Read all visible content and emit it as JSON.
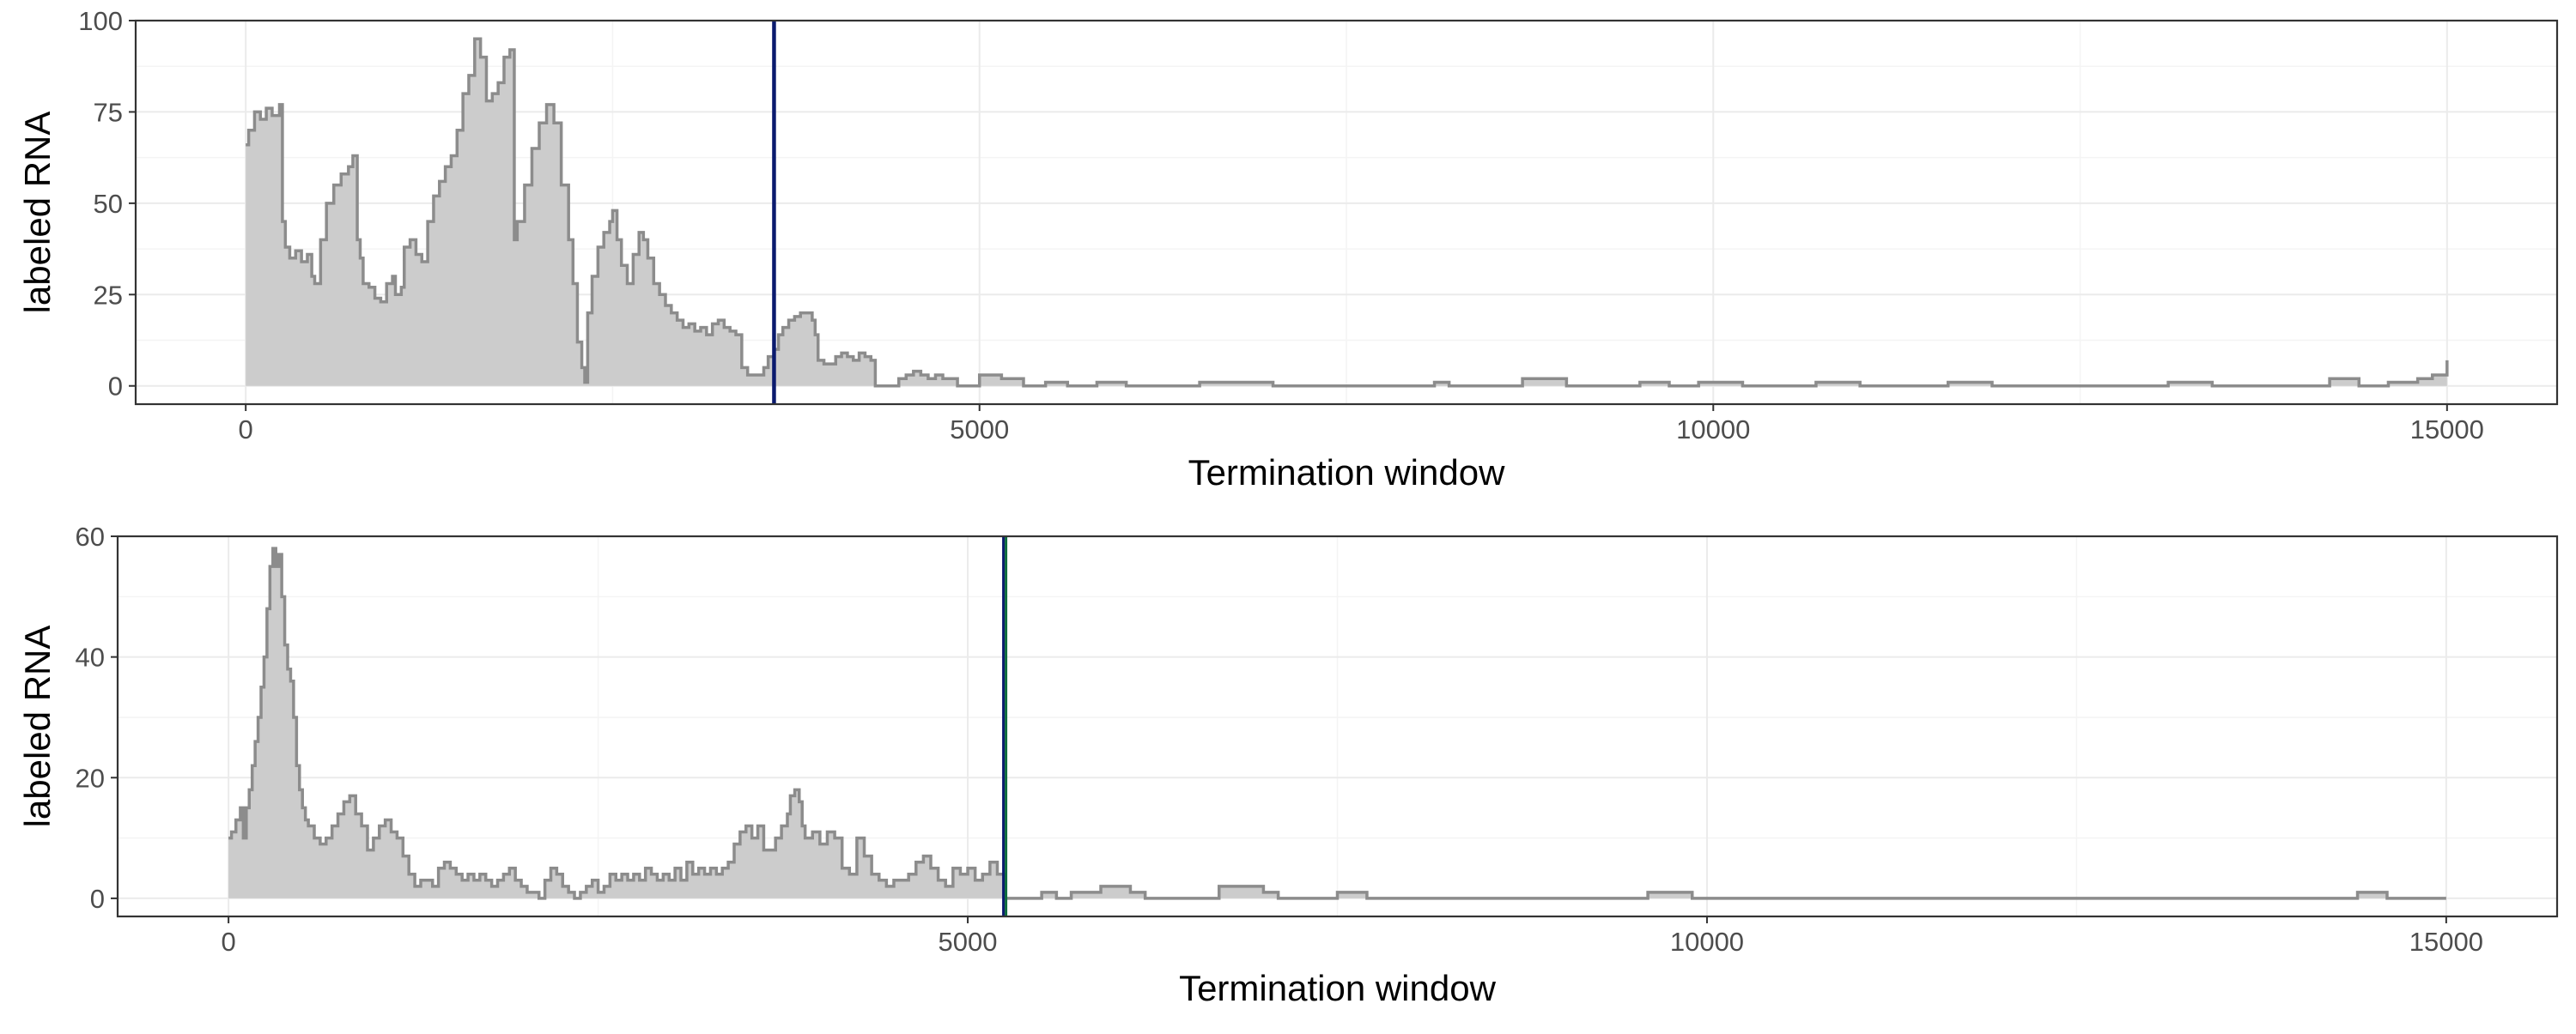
{
  "colors": {
    "area_fill": "#cccccc",
    "area_line": "#8c8c8c",
    "vline_top": "#0a1a6e",
    "vline_bottom_green": "#0c6b3c",
    "vline_bottom_navy": "#0a1a6e",
    "grid_major": "#ebebeb",
    "grid_minor": "#f4f4f4",
    "panel_border": "#333333"
  },
  "chart_data": [
    {
      "type": "area",
      "step": true,
      "xlabel": "Termination window",
      "ylabel": "labeled RNA",
      "xlim": [
        -750,
        15750
      ],
      "ylim": [
        -5,
        100
      ],
      "x_ticks": [
        0,
        5000,
        10000,
        15000
      ],
      "x_tick_labels": [
        "0",
        "5000",
        "10000",
        "15000"
      ],
      "y_ticks": [
        0,
        25,
        50,
        75,
        100
      ],
      "y_tick_labels": [
        "0",
        "25",
        "50",
        "75",
        "100"
      ],
      "grid": true,
      "vlines": [
        3600
      ],
      "points": [
        [
          0,
          66
        ],
        [
          20,
          70
        ],
        [
          60,
          75
        ],
        [
          100,
          73
        ],
        [
          140,
          76
        ],
        [
          180,
          74
        ],
        [
          230,
          77
        ],
        [
          250,
          45
        ],
        [
          270,
          38
        ],
        [
          300,
          35
        ],
        [
          340,
          37
        ],
        [
          380,
          34
        ],
        [
          420,
          36
        ],
        [
          450,
          30
        ],
        [
          470,
          28
        ],
        [
          510,
          40
        ],
        [
          550,
          50
        ],
        [
          600,
          55
        ],
        [
          650,
          58
        ],
        [
          700,
          60
        ],
        [
          730,
          63
        ],
        [
          760,
          40
        ],
        [
          780,
          35
        ],
        [
          800,
          28
        ],
        [
          840,
          27
        ],
        [
          880,
          24
        ],
        [
          920,
          23
        ],
        [
          960,
          28
        ],
        [
          1000,
          30
        ],
        [
          1020,
          25
        ],
        [
          1060,
          27
        ],
        [
          1080,
          38
        ],
        [
          1120,
          40
        ],
        [
          1160,
          36
        ],
        [
          1200,
          34
        ],
        [
          1240,
          45
        ],
        [
          1280,
          52
        ],
        [
          1320,
          56
        ],
        [
          1360,
          60
        ],
        [
          1400,
          63
        ],
        [
          1440,
          70
        ],
        [
          1480,
          80
        ],
        [
          1520,
          85
        ],
        [
          1560,
          95
        ],
        [
          1600,
          90
        ],
        [
          1640,
          78
        ],
        [
          1680,
          80
        ],
        [
          1720,
          83
        ],
        [
          1760,
          90
        ],
        [
          1800,
          92
        ],
        [
          1830,
          40
        ],
        [
          1850,
          45
        ],
        [
          1900,
          55
        ],
        [
          1950,
          65
        ],
        [
          2000,
          72
        ],
        [
          2050,
          77
        ],
        [
          2100,
          72
        ],
        [
          2150,
          55
        ],
        [
          2200,
          40
        ],
        [
          2230,
          28
        ],
        [
          2260,
          12
        ],
        [
          2290,
          5
        ],
        [
          2310,
          1
        ],
        [
          2330,
          20
        ],
        [
          2360,
          30
        ],
        [
          2400,
          38
        ],
        [
          2440,
          42
        ],
        [
          2480,
          45
        ],
        [
          2500,
          48
        ],
        [
          2530,
          40
        ],
        [
          2560,
          33
        ],
        [
          2600,
          28
        ],
        [
          2640,
          36
        ],
        [
          2680,
          42
        ],
        [
          2710,
          40
        ],
        [
          2740,
          35
        ],
        [
          2780,
          28
        ],
        [
          2820,
          25
        ],
        [
          2860,
          22
        ],
        [
          2900,
          20
        ],
        [
          2940,
          18
        ],
        [
          2980,
          16
        ],
        [
          3020,
          17
        ],
        [
          3060,
          15
        ],
        [
          3100,
          16
        ],
        [
          3140,
          14
        ],
        [
          3180,
          17
        ],
        [
          3220,
          18
        ],
        [
          3260,
          16
        ],
        [
          3300,
          15
        ],
        [
          3340,
          14
        ],
        [
          3380,
          5
        ],
        [
          3420,
          3
        ],
        [
          3460,
          3
        ],
        [
          3500,
          3
        ],
        [
          3530,
          5
        ],
        [
          3560,
          8
        ],
        [
          3600,
          10
        ],
        [
          3630,
          14
        ],
        [
          3660,
          16
        ],
        [
          3700,
          18
        ],
        [
          3740,
          19
        ],
        [
          3780,
          20
        ],
        [
          3820,
          20
        ],
        [
          3860,
          18
        ],
        [
          3880,
          14
        ],
        [
          3900,
          7
        ],
        [
          3940,
          6
        ],
        [
          3980,
          6
        ],
        [
          4020,
          8
        ],
        [
          4060,
          9
        ],
        [
          4100,
          8
        ],
        [
          4140,
          7
        ],
        [
          4180,
          9
        ],
        [
          4220,
          8
        ],
        [
          4260,
          7
        ],
        [
          4290,
          0
        ],
        [
          4400,
          0
        ],
        [
          4450,
          2
        ],
        [
          4500,
          3
        ],
        [
          4550,
          4
        ],
        [
          4600,
          3
        ],
        [
          4650,
          2
        ],
        [
          4700,
          3
        ],
        [
          4750,
          2
        ],
        [
          4850,
          0
        ],
        [
          4900,
          0
        ],
        [
          5000,
          3
        ],
        [
          5150,
          2
        ],
        [
          5300,
          0
        ],
        [
          5450,
          1
        ],
        [
          5600,
          0
        ],
        [
          5800,
          1
        ],
        [
          6000,
          0
        ],
        [
          6300,
          0
        ],
        [
          6500,
          1
        ],
        [
          6700,
          1
        ],
        [
          7000,
          0
        ],
        [
          7300,
          0
        ],
        [
          7600,
          0
        ],
        [
          8000,
          0
        ],
        [
          8100,
          1
        ],
        [
          8200,
          0
        ],
        [
          8700,
          2
        ],
        [
          9000,
          0
        ],
        [
          9300,
          0
        ],
        [
          9500,
          1
        ],
        [
          9700,
          0
        ],
        [
          9900,
          1
        ],
        [
          10200,
          0
        ],
        [
          10500,
          0
        ],
        [
          10700,
          1
        ],
        [
          11000,
          0
        ],
        [
          11300,
          0
        ],
        [
          11600,
          1
        ],
        [
          11900,
          0
        ],
        [
          12200,
          0
        ],
        [
          12500,
          0
        ],
        [
          12800,
          0
        ],
        [
          13100,
          1
        ],
        [
          13400,
          0
        ],
        [
          13700,
          0
        ],
        [
          14000,
          0
        ],
        [
          14200,
          2
        ],
        [
          14400,
          0
        ],
        [
          14600,
          1
        ],
        [
          14800,
          2
        ],
        [
          14900,
          3
        ],
        [
          15000,
          7
        ]
      ]
    },
    {
      "type": "area",
      "step": true,
      "xlabel": "Termination window",
      "ylabel": "labeled RNA",
      "xlim": [
        -750,
        15750
      ],
      "ylim": [
        -3,
        60
      ],
      "x_ticks": [
        0,
        5000,
        10000,
        15000
      ],
      "x_tick_labels": [
        "0",
        "5000",
        "10000",
        "15000"
      ],
      "y_ticks": [
        0,
        20,
        40,
        60
      ],
      "y_tick_labels": [
        "0",
        "20",
        "40",
        "60"
      ],
      "grid": true,
      "vlines": [
        5250
      ],
      "points": [
        [
          0,
          10
        ],
        [
          20,
          11
        ],
        [
          50,
          13
        ],
        [
          80,
          15
        ],
        [
          100,
          10
        ],
        [
          120,
          15
        ],
        [
          140,
          18
        ],
        [
          160,
          22
        ],
        [
          180,
          26
        ],
        [
          200,
          30
        ],
        [
          220,
          35
        ],
        [
          240,
          40
        ],
        [
          260,
          48
        ],
        [
          280,
          55
        ],
        [
          300,
          58
        ],
        [
          320,
          55
        ],
        [
          340,
          57
        ],
        [
          360,
          50
        ],
        [
          380,
          42
        ],
        [
          400,
          38
        ],
        [
          420,
          36
        ],
        [
          440,
          30
        ],
        [
          460,
          22
        ],
        [
          480,
          18
        ],
        [
          500,
          15
        ],
        [
          520,
          13
        ],
        [
          540,
          12
        ],
        [
          580,
          10
        ],
        [
          620,
          9
        ],
        [
          660,
          10
        ],
        [
          700,
          12
        ],
        [
          740,
          14
        ],
        [
          780,
          16
        ],
        [
          820,
          17
        ],
        [
          860,
          14
        ],
        [
          900,
          12
        ],
        [
          940,
          8
        ],
        [
          980,
          10
        ],
        [
          1020,
          12
        ],
        [
          1060,
          13
        ],
        [
          1100,
          11
        ],
        [
          1140,
          10
        ],
        [
          1180,
          7
        ],
        [
          1220,
          4
        ],
        [
          1260,
          2
        ],
        [
          1300,
          3
        ],
        [
          1340,
          3
        ],
        [
          1380,
          2
        ],
        [
          1420,
          5
        ],
        [
          1460,
          6
        ],
        [
          1500,
          5
        ],
        [
          1540,
          4
        ],
        [
          1580,
          3
        ],
        [
          1620,
          4
        ],
        [
          1660,
          3
        ],
        [
          1700,
          4
        ],
        [
          1740,
          3
        ],
        [
          1780,
          2
        ],
        [
          1820,
          3
        ],
        [
          1860,
          4
        ],
        [
          1900,
          5
        ],
        [
          1940,
          3
        ],
        [
          1980,
          2
        ],
        [
          2020,
          1
        ],
        [
          2060,
          1
        ],
        [
          2100,
          0
        ],
        [
          2140,
          3
        ],
        [
          2180,
          5
        ],
        [
          2220,
          4
        ],
        [
          2260,
          2
        ],
        [
          2300,
          1
        ],
        [
          2340,
          0
        ],
        [
          2380,
          1
        ],
        [
          2420,
          2
        ],
        [
          2460,
          3
        ],
        [
          2500,
          1
        ],
        [
          2540,
          2
        ],
        [
          2580,
          4
        ],
        [
          2620,
          3
        ],
        [
          2660,
          4
        ],
        [
          2700,
          3
        ],
        [
          2740,
          4
        ],
        [
          2780,
          3
        ],
        [
          2820,
          5
        ],
        [
          2860,
          4
        ],
        [
          2900,
          3
        ],
        [
          2940,
          4
        ],
        [
          2980,
          3
        ],
        [
          3020,
          5
        ],
        [
          3060,
          3
        ],
        [
          3100,
          6
        ],
        [
          3140,
          4
        ],
        [
          3180,
          5
        ],
        [
          3220,
          4
        ],
        [
          3260,
          5
        ],
        [
          3300,
          4
        ],
        [
          3340,
          5
        ],
        [
          3380,
          6
        ],
        [
          3420,
          9
        ],
        [
          3460,
          11
        ],
        [
          3500,
          12
        ],
        [
          3540,
          10
        ],
        [
          3580,
          12
        ],
        [
          3620,
          8
        ],
        [
          3660,
          8
        ],
        [
          3700,
          10
        ],
        [
          3740,
          12
        ],
        [
          3780,
          14
        ],
        [
          3800,
          17
        ],
        [
          3830,
          18
        ],
        [
          3860,
          16
        ],
        [
          3880,
          12
        ],
        [
          3900,
          10
        ],
        [
          3950,
          11
        ],
        [
          4000,
          9
        ],
        [
          4050,
          11
        ],
        [
          4100,
          10
        ],
        [
          4150,
          5
        ],
        [
          4200,
          4
        ],
        [
          4250,
          10
        ],
        [
          4300,
          7
        ],
        [
          4350,
          4
        ],
        [
          4400,
          3
        ],
        [
          4450,
          2
        ],
        [
          4500,
          3
        ],
        [
          4550,
          3
        ],
        [
          4600,
          4
        ],
        [
          4650,
          6
        ],
        [
          4700,
          7
        ],
        [
          4750,
          5
        ],
        [
          4800,
          3
        ],
        [
          4850,
          2
        ],
        [
          4900,
          5
        ],
        [
          4950,
          4
        ],
        [
          5000,
          5
        ],
        [
          5050,
          3
        ],
        [
          5100,
          4
        ],
        [
          5150,
          6
        ],
        [
          5200,
          4
        ],
        [
          5250,
          0
        ],
        [
          5400,
          0
        ],
        [
          5500,
          1
        ],
        [
          5600,
          0
        ],
        [
          5700,
          1
        ],
        [
          5800,
          1
        ],
        [
          5900,
          2
        ],
        [
          6100,
          1
        ],
        [
          6200,
          0
        ],
        [
          6500,
          0
        ],
        [
          6700,
          2
        ],
        [
          6900,
          2
        ],
        [
          7000,
          1
        ],
        [
          7100,
          0
        ],
        [
          7400,
          0
        ],
        [
          7500,
          1
        ],
        [
          7700,
          0
        ],
        [
          8000,
          0
        ],
        [
          8100,
          0
        ],
        [
          8200,
          0
        ],
        [
          8500,
          0
        ],
        [
          9000,
          0
        ],
        [
          9500,
          0
        ],
        [
          9600,
          1
        ],
        [
          9800,
          1
        ],
        [
          9900,
          0
        ],
        [
          10200,
          0
        ],
        [
          10500,
          0
        ],
        [
          11000,
          0
        ],
        [
          12000,
          0
        ],
        [
          13000,
          0
        ],
        [
          14000,
          0
        ],
        [
          14300,
          0
        ],
        [
          14400,
          1
        ],
        [
          14600,
          0
        ],
        [
          15000,
          0
        ]
      ]
    }
  ]
}
